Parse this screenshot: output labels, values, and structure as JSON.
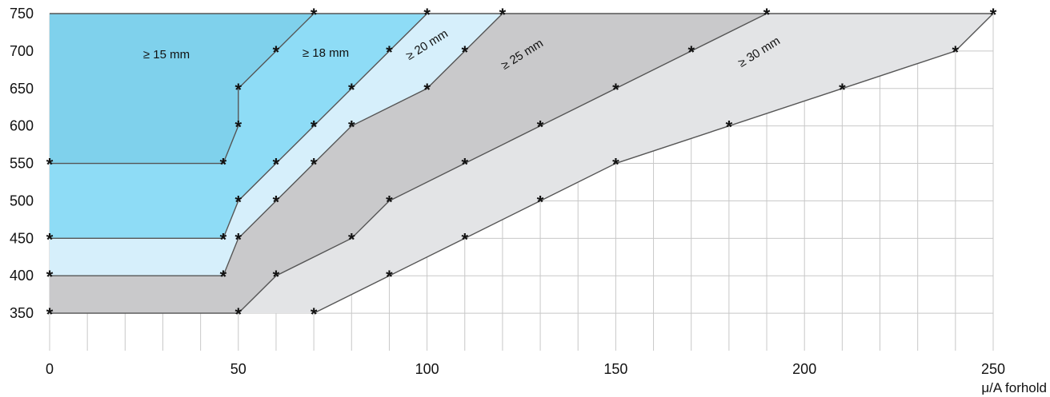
{
  "chart_data": {
    "type": "area",
    "xlabel": "μ/A forhold",
    "ylabel": "",
    "xlim": [
      0,
      250
    ],
    "ylim": [
      300,
      750
    ],
    "x_ticks": [
      0,
      50,
      100,
      150,
      200,
      250
    ],
    "y_ticks": [
      350,
      400,
      450,
      500,
      550,
      600,
      650,
      700,
      750
    ],
    "grid": true,
    "zone_labels": [
      "≥ 15 mm",
      "≥ 18 mm",
      "≥ 20 mm",
      "≥ 25 mm",
      "≥ 30 mm"
    ],
    "series": [
      {
        "name": "≥ 15 mm",
        "fill": "#7fd1ec",
        "points": [
          [
            0,
            550
          ],
          [
            46,
            550
          ],
          [
            50,
            600
          ],
          [
            50,
            650
          ],
          [
            60,
            700
          ],
          [
            70,
            750
          ]
        ]
      },
      {
        "name": "≥ 18 mm",
        "fill": "#8edcf6",
        "points": [
          [
            0,
            450
          ],
          [
            46,
            450
          ],
          [
            50,
            500
          ],
          [
            60,
            550
          ],
          [
            70,
            600
          ],
          [
            80,
            650
          ],
          [
            90,
            700
          ],
          [
            100,
            750
          ]
        ]
      },
      {
        "name": "≥ 20 mm",
        "fill": "#d6effb",
        "points": [
          [
            0,
            400
          ],
          [
            46,
            400
          ],
          [
            50,
            450
          ],
          [
            60,
            500
          ],
          [
            70,
            550
          ],
          [
            80,
            600
          ],
          [
            100,
            650
          ],
          [
            110,
            700
          ],
          [
            120,
            750
          ]
        ]
      },
      {
        "name": "≥ 25 mm",
        "fill": "#c9c9cb",
        "points": [
          [
            0,
            350
          ],
          [
            50,
            350
          ],
          [
            60,
            400
          ],
          [
            80,
            450
          ],
          [
            90,
            500
          ],
          [
            110,
            550
          ],
          [
            130,
            600
          ],
          [
            150,
            650
          ],
          [
            170,
            700
          ],
          [
            190,
            750
          ]
        ]
      },
      {
        "name": "≥ 30 mm",
        "fill": "#e3e4e6",
        "points": [
          [
            70,
            350
          ],
          [
            90,
            400
          ],
          [
            110,
            450
          ],
          [
            130,
            500
          ],
          [
            150,
            550
          ],
          [
            180,
            600
          ],
          [
            210,
            650
          ],
          [
            240,
            700
          ],
          [
            250,
            750
          ]
        ]
      }
    ]
  }
}
